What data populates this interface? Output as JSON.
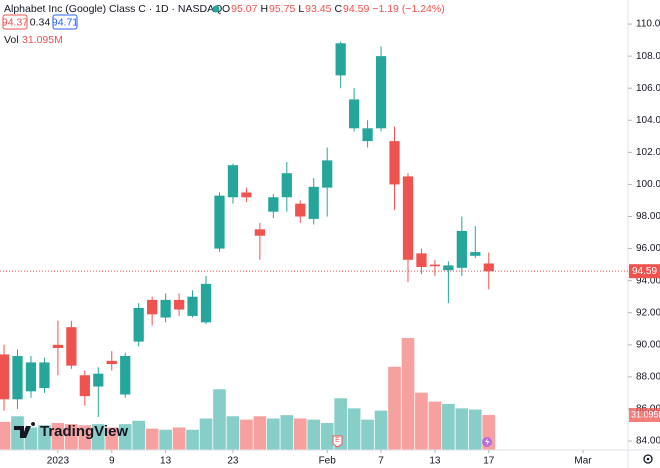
{
  "chart_data": {
    "type": "candlestick",
    "title": "Alphabet Inc (Google) Class C · 1D · NASDAQ",
    "ohlc_labels": [
      "O",
      "H",
      "L",
      "C"
    ],
    "change": "−1.19 (−1.24%)",
    "bid": "94.37",
    "spread": "0.34",
    "ask": "94.71",
    "volume_title": "Vol",
    "volume_label": "31.095M",
    "watermark": "TradingView",
    "up_color": "#26a69a",
    "down_color": "#ef5350",
    "open": [
      89.4,
      86.6,
      87.1,
      87.3,
      90.0,
      91.1,
      88.1,
      87.4,
      89.0,
      86.9,
      90.2,
      92.8,
      91.7,
      92.8,
      91.8,
      91.4,
      96.0,
      99.2,
      99.5,
      97.2,
      98.3,
      99.2,
      98.8,
      97.85,
      99.8,
      106.8,
      103.5,
      102.7,
      103.5,
      102.7,
      100.5,
      95.7,
      95.0,
      94.65,
      94.8,
      95.55,
      95.07
    ],
    "high": [
      90.0,
      89.7,
      89.3,
      89.2,
      91.5,
      91.5,
      88.4,
      88.6,
      89.6,
      89.5,
      92.6,
      93.0,
      93.2,
      93.2,
      93.4,
      94.3,
      99.5,
      101.3,
      99.8,
      97.6,
      99.4,
      101.4,
      99.0,
      100.4,
      102.3,
      108.9,
      106.0,
      104.0,
      108.6,
      103.6,
      100.7,
      96.0,
      95.3,
      95.2,
      98.0,
      97.4,
      95.75
    ],
    "low": [
      85.9,
      86.0,
      86.7,
      87.0,
      88.1,
      88.5,
      86.2,
      85.5,
      88.4,
      86.7,
      89.9,
      91.2,
      91.4,
      91.8,
      91.7,
      91.3,
      95.8,
      98.8,
      98.9,
      95.3,
      97.9,
      98.3,
      97.6,
      97.5,
      98.0,
      106.0,
      103.3,
      102.3,
      103.3,
      98.4,
      93.9,
      94.4,
      94.3,
      92.6,
      94.3,
      95.4,
      93.45
    ],
    "close": [
      86.6,
      89.3,
      88.9,
      88.9,
      89.8,
      88.7,
      86.8,
      88.2,
      88.8,
      89.3,
      92.3,
      91.9,
      92.8,
      92.2,
      93.0,
      93.8,
      99.3,
      101.2,
      99.2,
      96.8,
      99.2,
      100.7,
      98.0,
      99.85,
      101.5,
      108.8,
      105.3,
      103.5,
      108.0,
      100.0,
      95.3,
      94.85,
      94.9,
      94.95,
      97.1,
      95.78,
      94.59
    ],
    "volume": [
      25,
      30,
      20,
      22,
      24,
      23,
      22,
      23,
      20,
      23,
      26,
      19,
      18,
      20,
      18,
      28,
      54,
      30,
      27,
      30,
      28,
      31,
      28,
      27,
      24,
      46,
      37,
      27,
      35,
      74,
      99.5,
      51,
      43,
      41,
      37,
      36,
      31.095
    ],
    "xlim": [
      -0.3,
      46.34
    ],
    "xticks": [
      {
        "value": 4,
        "label": "2023"
      },
      {
        "value": 8,
        "label": "9"
      },
      {
        "value": 12,
        "label": "13"
      },
      {
        "value": 17,
        "label": "23"
      },
      {
        "value": 24,
        "label": "Feb"
      },
      {
        "value": 28,
        "label": "7"
      },
      {
        "value": 32,
        "label": "13"
      },
      {
        "value": 36,
        "label": "17"
      },
      {
        "value": 43,
        "label": "Mar"
      }
    ],
    "ylim": [
      83.44,
      111.5
    ],
    "yticks": [
      {
        "value": 84,
        "label": "84.00"
      },
      {
        "value": 86,
        "label": "86.00"
      },
      {
        "value": 88,
        "label": "88.00"
      },
      {
        "value": 90,
        "label": "90.00"
      },
      {
        "value": 92,
        "label": "92.00"
      },
      {
        "value": 94,
        "label": "94.00"
      },
      {
        "value": 96,
        "label": "96.00"
      },
      {
        "value": 98,
        "label": "98.00"
      },
      {
        "value": 100,
        "label": "100.00"
      },
      {
        "value": 102,
        "label": "102.00"
      },
      {
        "value": 104,
        "label": "104.00"
      },
      {
        "value": 106,
        "label": "106.00"
      },
      {
        "value": 108,
        "label": "108.00"
      },
      {
        "value": 110,
        "label": "110.00"
      }
    ],
    "y2lim": [
      0,
      400
    ],
    "grid": false
  }
}
